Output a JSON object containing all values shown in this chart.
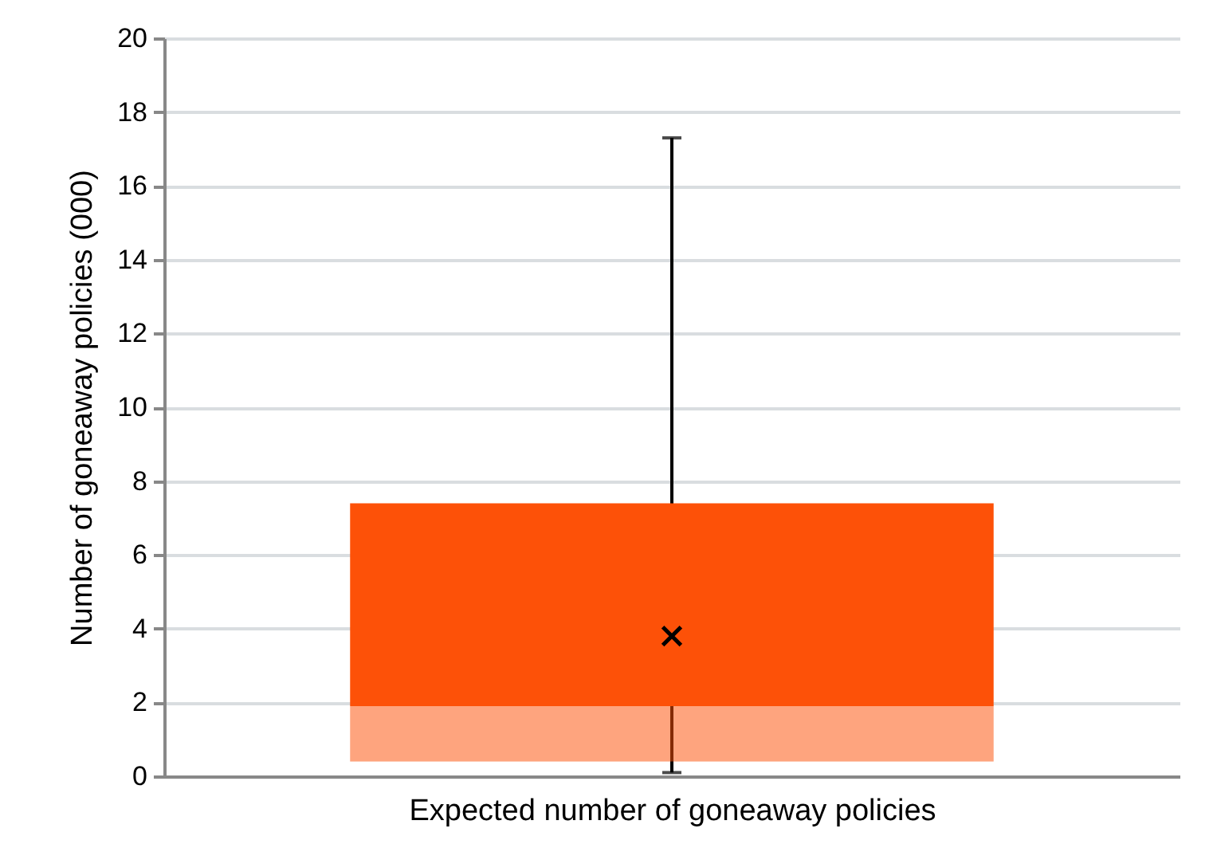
{
  "chart_data": {
    "type": "box",
    "xlabel": "Expected number of goneaway policies",
    "ylabel": "Number of goneaway policies (000)",
    "categories": [
      null
    ],
    "series": [
      {
        "color": "#fd5108",
        "boxes": [
          {
            "low": 0.1,
            "q1": 0.4,
            "median": 1.9,
            "q3": 7.4,
            "high": 17.3,
            "mean": 3.8
          }
        ]
      }
    ],
    "ylim": [
      0,
      20
    ],
    "yticks": [
      0,
      2,
      4,
      6,
      8,
      10,
      12,
      14,
      16,
      18,
      20
    ],
    "grid": "y",
    "marker": "cross"
  }
}
